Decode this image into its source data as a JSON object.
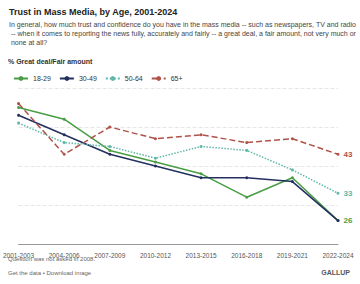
{
  "chart_data": {
    "type": "line",
    "title": "Trust in Mass Media, by Age, 2001-2024",
    "subtitle": "In general, how much trust and confidence do you have in the mass media -- such as newspapers, TV and radio -- when it comes to reporting the news fully, accurately and fairly -- a great deal, a fair amount, not very much or none at all?",
    "ylabel": "% Great deal/Fair amount",
    "annotations": [
      "Question was not asked in 2008.",
      "Get the data • Download image",
      "GALLUP"
    ],
    "categories": [
      "2001-2003",
      "2004-2006",
      "2007-2009",
      "2010-2012",
      "2013-2015",
      "2016-2018",
      "2019-2021",
      "2022-2024"
    ],
    "series": [
      {
        "name": "18-29",
        "color": "#4a9d45",
        "line_style": "solid",
        "marker": "circle",
        "values": [
          55,
          52,
          44,
          41,
          38,
          32,
          37,
          26
        ],
        "value_labels": [
          null,
          null,
          null,
          null,
          null,
          null,
          null,
          "26"
        ]
      },
      {
        "name": "30-49",
        "color": "#23305f",
        "line_style": "solid",
        "marker": "circle",
        "values": [
          53,
          48,
          43,
          40,
          37,
          37,
          36,
          26
        ],
        "value_labels": [
          null,
          null,
          null,
          null,
          null,
          null,
          null,
          null
        ]
      },
      {
        "name": "50-64",
        "color": "#5fb8a8",
        "line_style": "dotted",
        "marker": "circle",
        "values": [
          51,
          46,
          45,
          42,
          45,
          44,
          39,
          33
        ],
        "value_labels": [
          null,
          null,
          null,
          null,
          null,
          null,
          null,
          "33"
        ]
      },
      {
        "name": "65+",
        "color": "#b0524a",
        "line_style": "dashed",
        "marker": "circle",
        "values": [
          56,
          43,
          50,
          47,
          48,
          46,
          47,
          43
        ],
        "value_labels": [
          null,
          null,
          null,
          null,
          null,
          null,
          null,
          "43"
        ]
      }
    ],
    "ylim": [
      20,
      60
    ],
    "yticks": [
      20,
      30,
      40,
      50,
      60
    ],
    "grid": true,
    "tick_labels": "x",
    "legend": "top-left"
  }
}
